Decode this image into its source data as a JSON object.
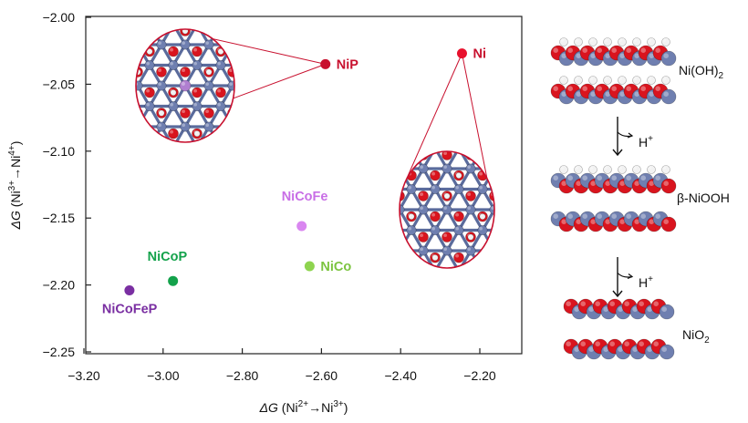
{
  "chart_data": {
    "type": "scatter",
    "xlabel_parts": [
      "ΔG",
      " (Ni",
      "2+",
      "→Ni",
      "3+",
      ")"
    ],
    "ylabel_parts": [
      "ΔG",
      " (Ni",
      "3+",
      "→Ni",
      "4+",
      ")"
    ],
    "xlim": [
      -3.2,
      -2.1
    ],
    "ylim": [
      -2.25,
      -2.0
    ],
    "x_ticks": [
      "−3.20",
      "−3.00",
      "−2.80",
      "−2.60",
      "−2.40",
      "−2.20"
    ],
    "x_tick_values": [
      -3.2,
      -3.0,
      -2.8,
      -2.6,
      -2.4,
      -2.2
    ],
    "y_ticks": [
      "−2.00",
      "−2.05",
      "−2.10",
      "−2.15",
      "−2.20",
      "−2.25"
    ],
    "y_tick_values": [
      -2.0,
      -2.05,
      -2.1,
      -2.15,
      -2.2,
      -2.25
    ],
    "points": [
      {
        "label": "NiP",
        "x": -2.59,
        "y": -2.035,
        "color": "#c8102e",
        "label_color": "#c8102e"
      },
      {
        "label": "Ni",
        "x": -2.245,
        "y": -2.027,
        "color": "#e8112d",
        "label_color": "#c8102e"
      },
      {
        "label": "NiCoFe",
        "x": -2.65,
        "y": -2.156,
        "color": "#d986f0",
        "label_color": "#c86ee6"
      },
      {
        "label": "NiCo",
        "x": -2.63,
        "y": -2.186,
        "color": "#8ed44f",
        "label_color": "#7cc440"
      },
      {
        "label": "NiCoP",
        "x": -2.975,
        "y": -2.197,
        "color": "#13a24b",
        "label_color": "#13a24b"
      },
      {
        "label": "NiCoFeP",
        "x": -3.085,
        "y": -2.204,
        "color": "#7a2fa2",
        "label_color": "#7a2fa2"
      }
    ]
  },
  "side_panel": {
    "structures": [
      {
        "name": "Ni(OH)",
        "sub": "2"
      },
      {
        "name": "β-NiOOH",
        "sub": ""
      },
      {
        "name": "NiO",
        "sub": "2"
      }
    ],
    "arrow_label": "H",
    "arrow_sup": "+"
  },
  "colors": {
    "oxygen": "#d9141e",
    "nickel": "#6f7fb0",
    "hydrogen": "#f2f2f2",
    "phosphorus": "#b07fd0",
    "callout": "#c8102e"
  }
}
